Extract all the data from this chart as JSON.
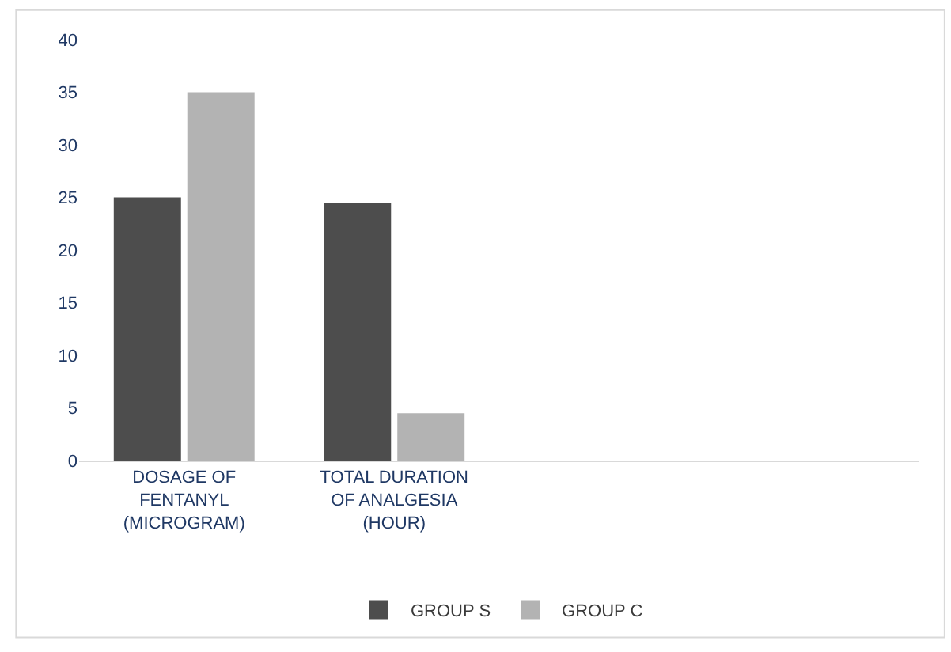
{
  "chart_data": {
    "type": "bar",
    "categories": [
      "DOSAGE OF FENTANYL (MICROGRAM)",
      "TOTAL DURATION OF ANALGESIA (HOUR)",
      null,
      null
    ],
    "series": [
      {
        "name": "GROUP S",
        "color": "#4d4d4d",
        "values": [
          25,
          24.5,
          null,
          null
        ]
      },
      {
        "name": "GROUP C",
        "color": "#b3b3b3",
        "values": [
          35,
          4.5,
          null,
          null
        ]
      }
    ],
    "ylim": [
      0,
      40
    ],
    "yticks": [
      0,
      5,
      10,
      15,
      20,
      25,
      30,
      35,
      40
    ],
    "grid": false,
    "legend": "bottom"
  }
}
